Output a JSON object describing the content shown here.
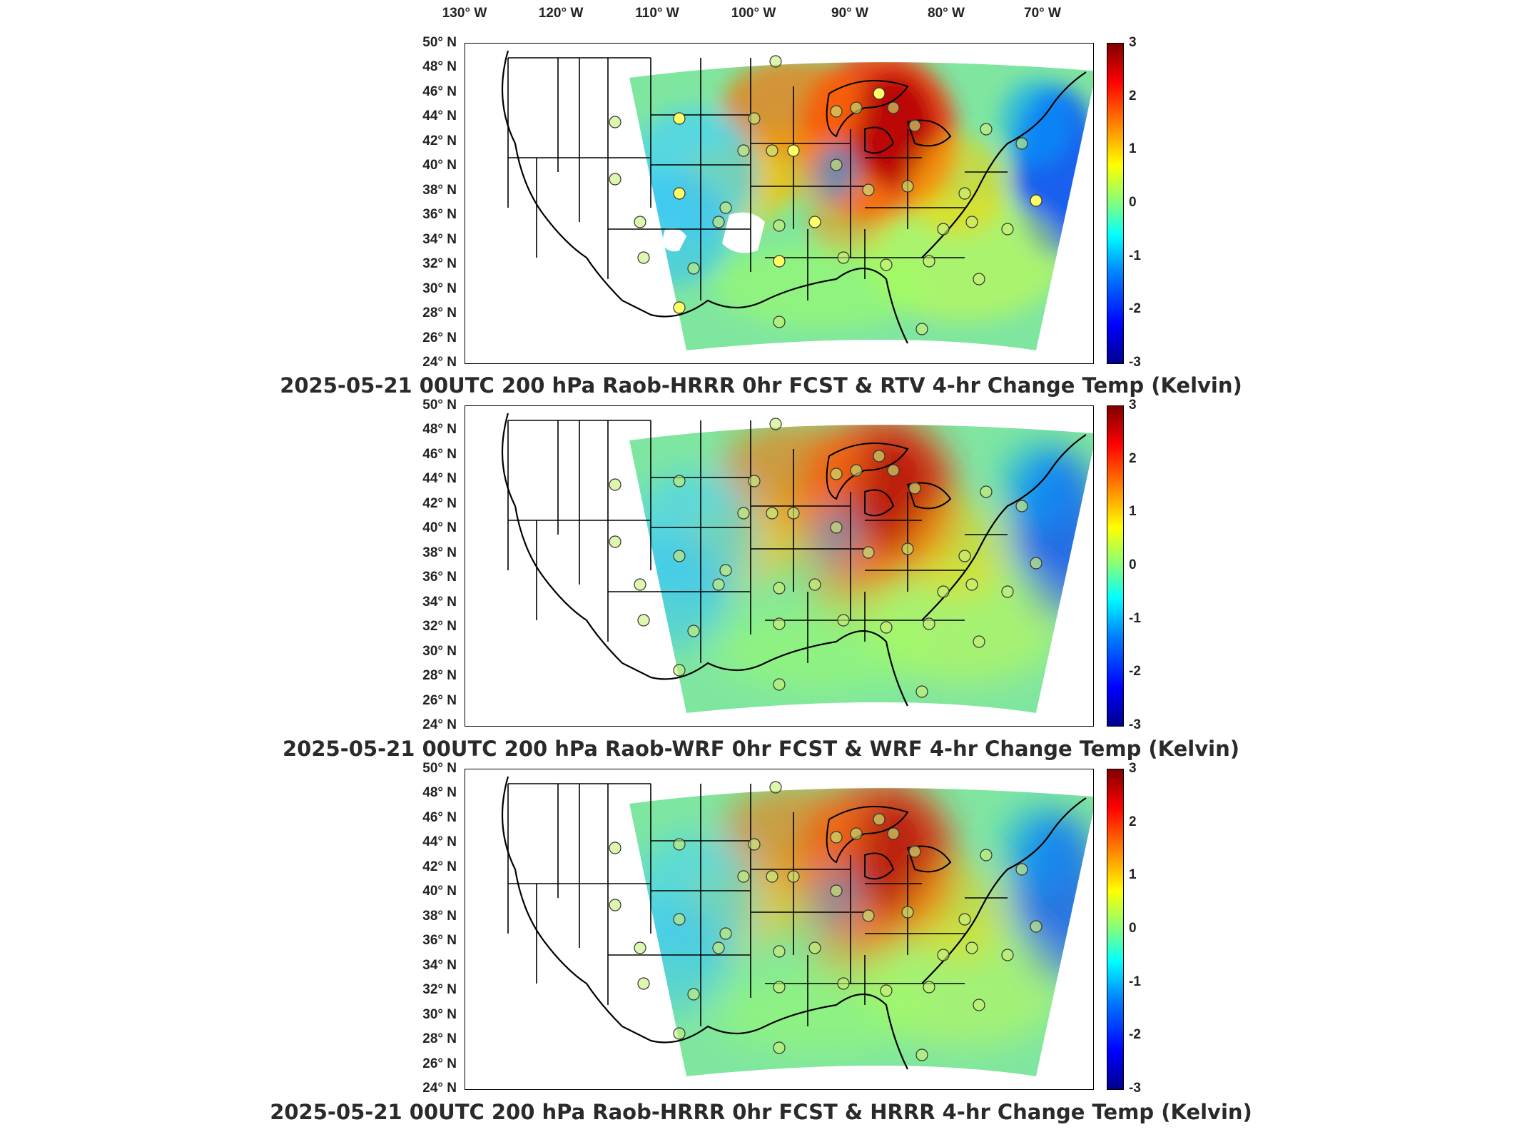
{
  "lon_labels": [
    "130° W",
    "120° W",
    "110° W",
    "100° W",
    "90° W",
    "80° W",
    "70° W"
  ],
  "lat_labels": [
    "50° N",
    "48° N",
    "46° N",
    "44° N",
    "42° N",
    "40° N",
    "38° N",
    "36° N",
    "34° N",
    "32° N",
    "30° N",
    "28° N",
    "26° N",
    "24° N"
  ],
  "colorbar": {
    "ticks": [
      "3",
      "2",
      "1",
      "0",
      "-1",
      "-2",
      "-3"
    ],
    "range": [
      -3,
      3
    ],
    "colormap": [
      "#00008f",
      "#0000ff",
      "#0080ff",
      "#00ffff",
      "#80ff80",
      "#ffff00",
      "#ff8000",
      "#ff0000",
      "#800000"
    ]
  },
  "panels": [
    {
      "title": "2025-05-21 00UTC 200 hPa Raob-HRRR 0hr FCST & RTV 4-hr Change Temp (Kelvin)",
      "variant": "rtv"
    },
    {
      "title": "2025-05-21 00UTC 200 hPa Raob-WRF 0hr FCST & WRF 4-hr Change Temp (Kelvin)",
      "variant": "wrf"
    },
    {
      "title": "2025-05-21 00UTC 200 hPa Raob-HRRR 0hr FCST & HRRR 4-hr Change Temp (Kelvin)",
      "variant": "hrrr"
    }
  ]
}
